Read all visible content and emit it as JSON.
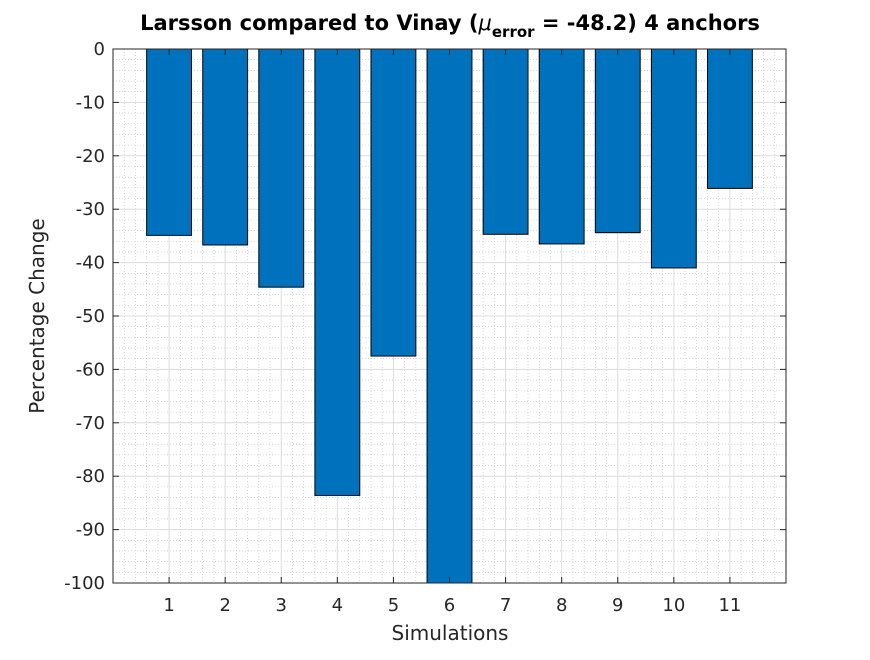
{
  "chart_data": {
    "type": "bar",
    "title": {
      "prefix": "Larsson compared to Vinay (",
      "mu": "μ",
      "subscript": "error",
      "suffix": " = -48.2) 4 anchors"
    },
    "xlabel": "Simulations",
    "ylabel": "Percentage Change",
    "categories": [
      "1",
      "2",
      "3",
      "4",
      "5",
      "6",
      "7",
      "8",
      "9",
      "10",
      "11"
    ],
    "values": [
      -34.9,
      -36.7,
      -44.6,
      -83.6,
      -57.5,
      -100,
      -34.7,
      -36.5,
      -34.4,
      -41.0,
      -26.1
    ],
    "ylim": [
      -100,
      0
    ],
    "xlim": [
      0,
      12
    ],
    "yticks": [
      0,
      -10,
      -20,
      -30,
      -40,
      -50,
      -60,
      -70,
      -80,
      -90,
      -100
    ],
    "grid": "on (major and minor)",
    "bar_color": "#0072BD",
    "edge_color": "#000000",
    "grid_color": "#dcdcdc",
    "minor_grid_color": "#bdbdbd"
  }
}
